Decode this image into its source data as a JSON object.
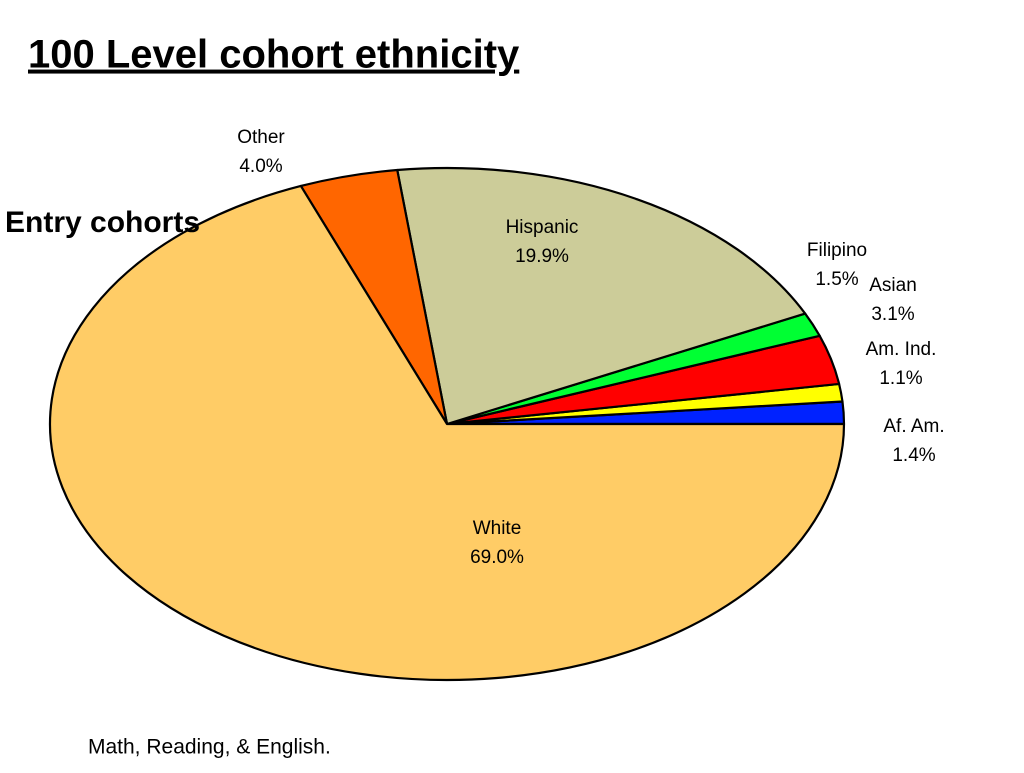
{
  "slide": {
    "title": "100 Level cohort ethnicity",
    "subtitle": "Entry cohorts",
    "footer": "Math, Reading, & English."
  },
  "chart_data": {
    "type": "pie",
    "categories": [
      "Af. Am.",
      "Am. Ind.",
      "Asian",
      "Filipino",
      "Hispanic",
      "Other",
      "White"
    ],
    "values": [
      1.4,
      1.1,
      3.1,
      1.5,
      19.9,
      4.0,
      69.0
    ],
    "value_labels": [
      "1.4%",
      "1.1%",
      "3.1%",
      "1.5%",
      "19.9%",
      "4.0%",
      "69.0%"
    ],
    "colors": [
      "#0022ff",
      "#ffff00",
      "#ff0000",
      "#00ff33",
      "#cccc99",
      "#ff6600",
      "#ffcc66"
    ]
  }
}
